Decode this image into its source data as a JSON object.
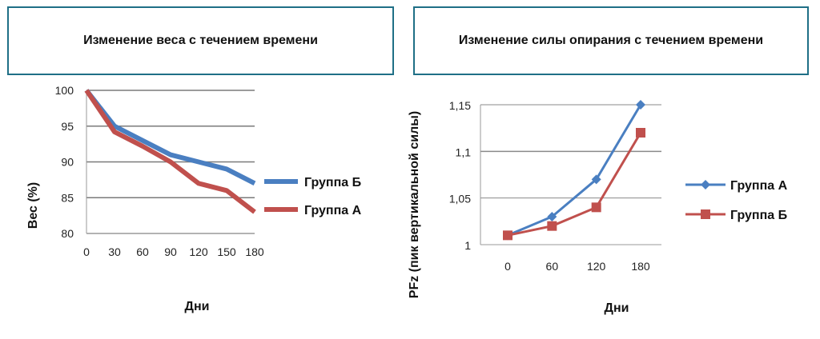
{
  "chart_data": [
    {
      "type": "line",
      "title": "Изменение веса с течением времени",
      "xlabel": "Дни",
      "ylabel": "Вес (%)",
      "x": [
        0,
        30,
        60,
        90,
        120,
        150,
        180
      ],
      "xtick_labels": [
        "0",
        "30",
        "60",
        "90",
        "120",
        "150",
        "180"
      ],
      "ytick_labels": [
        "80",
        "85",
        "90",
        "95",
        "100"
      ],
      "yticks": [
        80,
        85,
        90,
        95,
        100
      ],
      "ylim": [
        80,
        100
      ],
      "xlim": [
        0,
        180
      ],
      "grid": "horizontal",
      "legend_position": "right",
      "series": [
        {
          "name": "Группа Б",
          "color": "#4a7fc1",
          "marker": "none",
          "x": [
            0,
            30,
            60,
            90,
            120,
            150,
            180
          ],
          "values": [
            100,
            95,
            93,
            91,
            90,
            89,
            87
          ]
        },
        {
          "name": "Группа А",
          "color": "#c0504d",
          "marker": "none",
          "x": [
            0,
            30,
            60,
            90,
            120,
            150,
            180
          ],
          "values": [
            100,
            94.2,
            92.2,
            90,
            87,
            86,
            83
          ]
        }
      ]
    },
    {
      "type": "line",
      "title": "Изменение силы опирания с течением времени",
      "xlabel": "Дни",
      "ylabel": "PFz (пик вертикальной силы)",
      "categories": [
        "0",
        "60",
        "120",
        "180"
      ],
      "ytick_labels": [
        "1",
        "1,05",
        "1,1",
        "1,15"
      ],
      "yticks": [
        1,
        1.05,
        1.1,
        1.15
      ],
      "ylim": [
        1,
        1.15
      ],
      "grid": "horizontal",
      "legend_position": "right",
      "series": [
        {
          "name": "Группа А",
          "color": "#4a7fc1",
          "marker": "diamond",
          "values": [
            1.01,
            1.03,
            1.07,
            1.15
          ]
        },
        {
          "name": "Группа Б",
          "color": "#c0504d",
          "marker": "square",
          "values": [
            1.01,
            1.02,
            1.04,
            1.12
          ]
        }
      ]
    }
  ]
}
